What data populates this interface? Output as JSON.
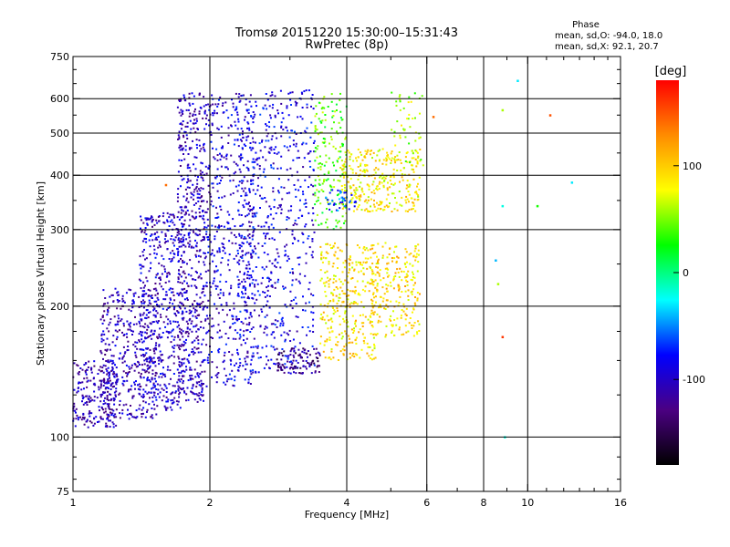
{
  "chart_data": {
    "type": "scatter",
    "title": "Tromsø 20151220 15:30:00–15:31:43",
    "subtitle": "RwPretec (8p)",
    "xlabel": "Frequency [MHz]",
    "ylabel": "Stationary phase Virtual Height [km]",
    "x_scale": "log",
    "y_scale": "log",
    "xlim": [
      1,
      16
    ],
    "ylim": [
      75,
      750
    ],
    "grid": true,
    "x_ticks": [
      {
        "value": 1,
        "label": "1"
      },
      {
        "value": 2,
        "label": "2"
      },
      {
        "value": 4,
        "label": "4"
      },
      {
        "value": 6,
        "label": "6"
      },
      {
        "value": 8,
        "label": "8"
      },
      {
        "value": 10,
        "label": "10"
      },
      {
        "value": 16,
        "label": "16"
      }
    ],
    "x_grid_values": [
      2,
      4,
      6,
      8,
      10
    ],
    "y_ticks": [
      {
        "value": 75,
        "label": "75"
      },
      {
        "value": 100,
        "label": "100"
      },
      {
        "value": 200,
        "label": "200"
      },
      {
        "value": 300,
        "label": "300"
      },
      {
        "value": 400,
        "label": "400"
      },
      {
        "value": 500,
        "label": "500"
      },
      {
        "value": 600,
        "label": "600"
      },
      {
        "value": 750,
        "label": "750"
      }
    ],
    "y_grid_values": [
      100,
      200,
      300,
      400,
      500,
      600
    ],
    "colorbar": {
      "label": "[deg]",
      "range": [
        -180,
        180
      ],
      "ticks": [
        {
          "value": 100,
          "label": "100"
        },
        {
          "value": 0,
          "label": "0"
        },
        {
          "value": -100,
          "label": "-100"
        }
      ],
      "colors": [
        "#000000",
        "#4b0082",
        "#0000ff",
        "#00ffff",
        "#00ff00",
        "#ffff00",
        "#ff8c00",
        "#ff0000"
      ]
    },
    "stats": {
      "heading": "Phase",
      "line1": "mean, sd,O: -94.0, 18.0",
      "line2": "mean, sd,X:  92.1, 20.7"
    },
    "clusters": [
      {
        "x": [
          1.0,
          1.25
        ],
        "y": [
          105,
          150
        ],
        "n": 220,
        "phase": -110
      },
      {
        "x": [
          1.15,
          1.55
        ],
        "y": [
          110,
          220
        ],
        "n": 420,
        "phase": -105
      },
      {
        "x": [
          1.4,
          1.75
        ],
        "y": [
          115,
          330
        ],
        "n": 450,
        "phase": -100
      },
      {
        "x": [
          1.7,
          1.95
        ],
        "y": [
          120,
          620
        ],
        "n": 550,
        "phase": -105
      },
      {
        "x": [
          1.95,
          2.5
        ],
        "y": [
          130,
          620
        ],
        "n": 500,
        "phase": -95
      },
      {
        "x": [
          2.3,
          3.4
        ],
        "y": [
          140,
          630
        ],
        "n": 650,
        "phase": -90
      },
      {
        "x": [
          2.8,
          3.5
        ],
        "y": [
          140,
          160
        ],
        "n": 90,
        "phase": -125
      },
      {
        "x": [
          3.4,
          4.0
        ],
        "y": [
          300,
          620
        ],
        "n": 170,
        "phase": 40
      },
      {
        "x": [
          3.5,
          4.7
        ],
        "y": [
          150,
          280
        ],
        "n": 340,
        "phase": 90
      },
      {
        "x": [
          3.9,
          5.8
        ],
        "y": [
          330,
          460
        ],
        "n": 320,
        "phase": 85
      },
      {
        "x": [
          4.5,
          5.8
        ],
        "y": [
          170,
          280
        ],
        "n": 230,
        "phase": 95
      },
      {
        "x": [
          3.6,
          4.2
        ],
        "y": [
          330,
          370
        ],
        "n": 40,
        "phase": -60
      },
      {
        "x": [
          5.0,
          5.9
        ],
        "y": [
          420,
          620
        ],
        "n": 50,
        "phase": 60
      }
    ],
    "isolated_points": [
      {
        "x": 6.2,
        "y": 545,
        "phase": 140
      },
      {
        "x": 8.5,
        "y": 255,
        "phase": -40
      },
      {
        "x": 8.6,
        "y": 225,
        "phase": 60
      },
      {
        "x": 8.8,
        "y": 340,
        "phase": -20
      },
      {
        "x": 8.8,
        "y": 170,
        "phase": 160
      },
      {
        "x": 8.9,
        "y": 100,
        "phase": -20
      },
      {
        "x": 8.8,
        "y": 565,
        "phase": 60
      },
      {
        "x": 10.5,
        "y": 340,
        "phase": 30
      },
      {
        "x": 11.2,
        "y": 550,
        "phase": 150
      },
      {
        "x": 12.5,
        "y": 385,
        "phase": -30
      },
      {
        "x": 9.5,
        "y": 660,
        "phase": -30
      },
      {
        "x": 1.6,
        "y": 380,
        "phase": 140
      }
    ]
  }
}
